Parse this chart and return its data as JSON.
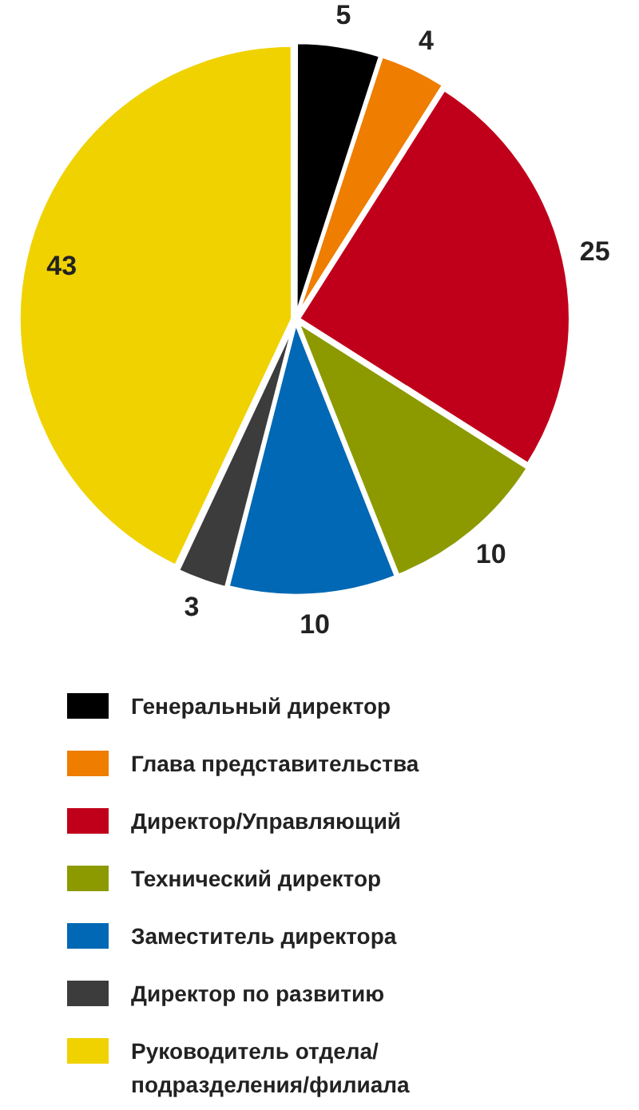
{
  "chart_data": {
    "type": "pie",
    "categories": [
      "Генеральный директор",
      "Глава представительства",
      "Директор/Управляющий",
      "Технический директор",
      "Заместитель директора",
      "Директор по развитию",
      "Руководитель отдела/подразделения/филиала"
    ],
    "values": [
      5,
      4,
      25,
      10,
      10,
      3,
      43
    ],
    "colors": [
      "#000000",
      "#ee7d00",
      "#c0001a",
      "#8c9a00",
      "#0068b4",
      "#3c3c3c",
      "#f0d200"
    ],
    "data_labels": true,
    "legend": "bottom"
  }
}
